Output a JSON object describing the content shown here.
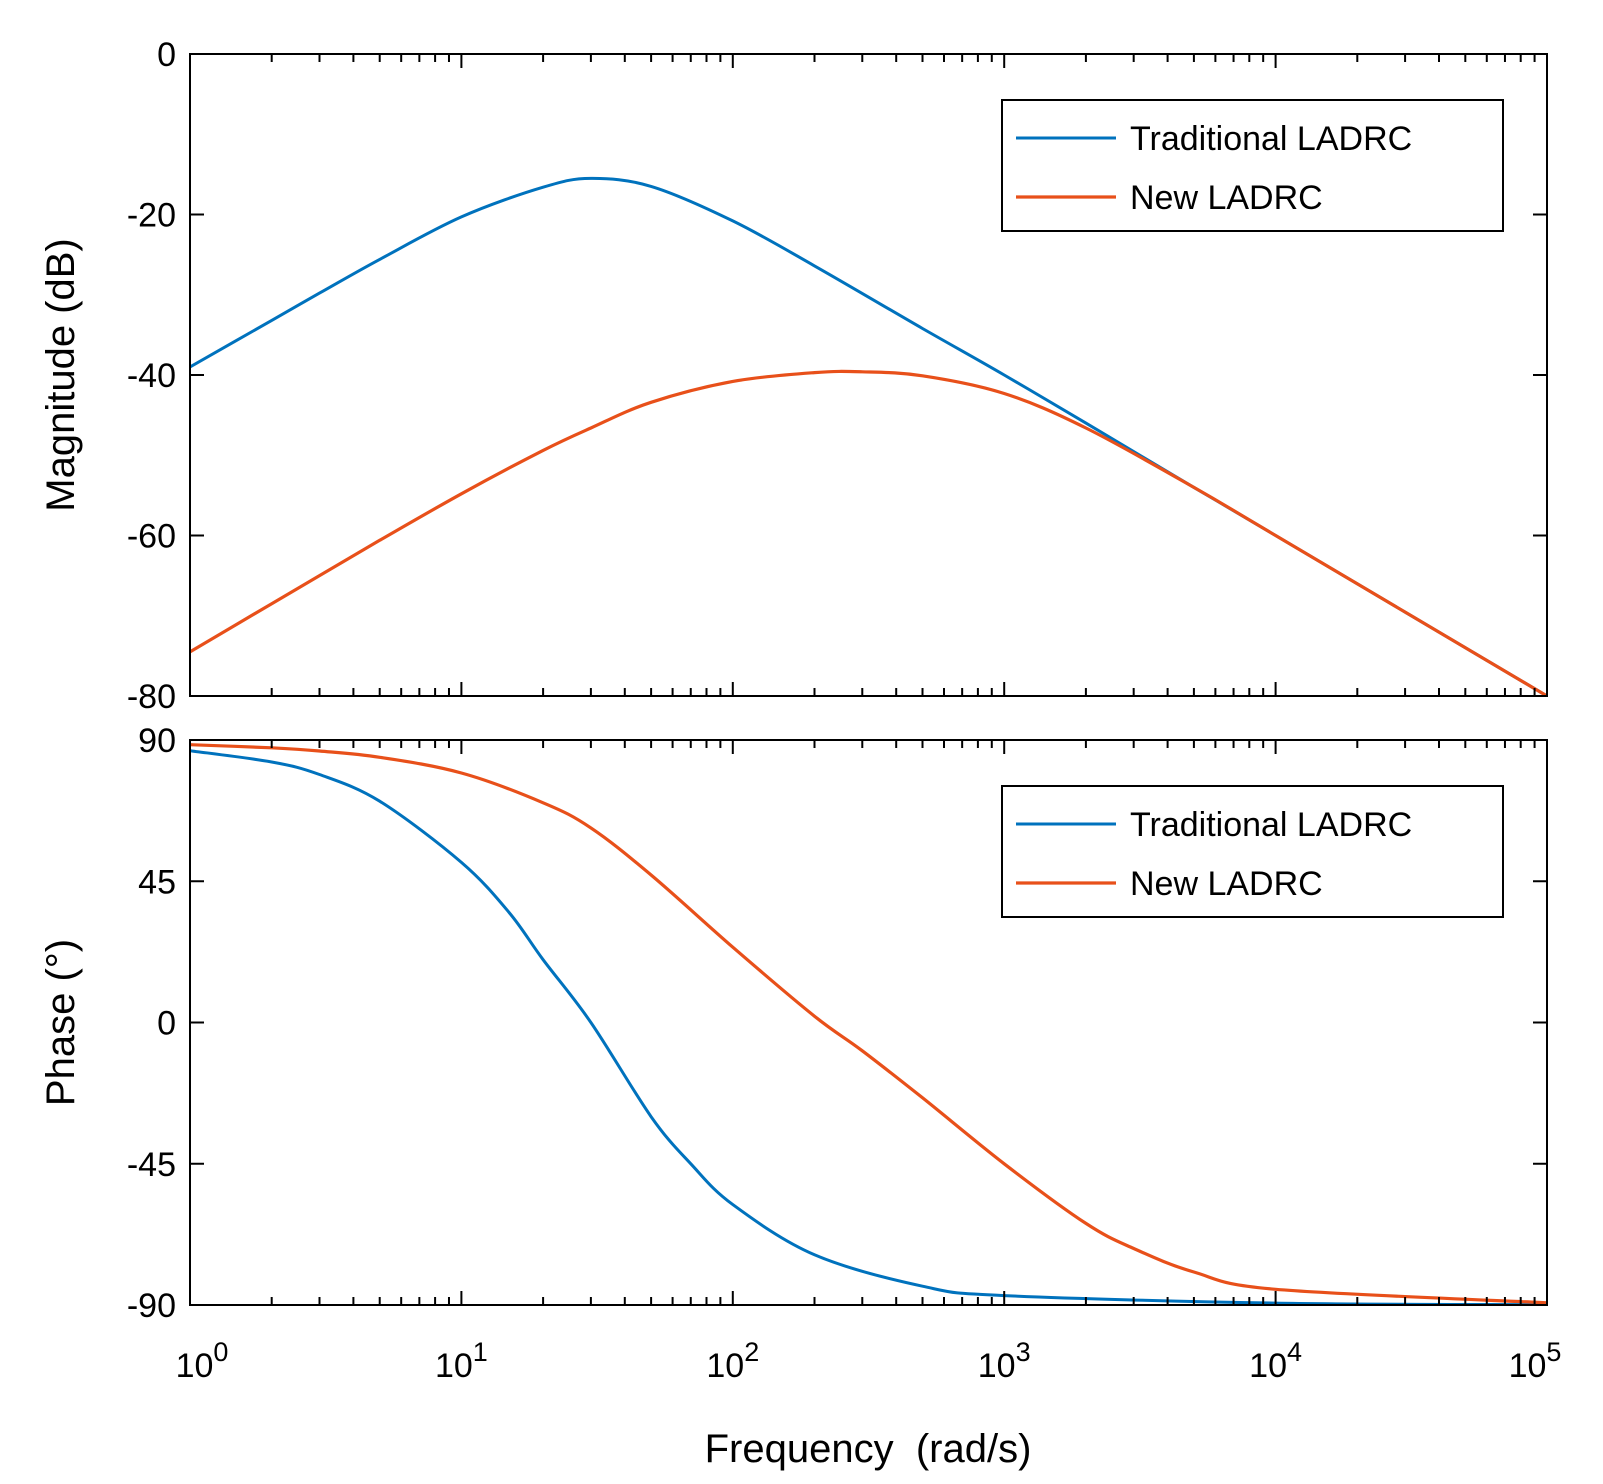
{
  "chart_data": [
    {
      "type": "line",
      "panel": "magnitude",
      "ylabel": "Magnitude (dB)",
      "xscale": "log",
      "xlim": [
        1,
        100000
      ],
      "ylim": [
        -80,
        0
      ],
      "yticks": [
        0,
        -20,
        -40,
        -60,
        -80
      ],
      "ytick_labels": [
        "0",
        "-20",
        "-40",
        "-60",
        "-80"
      ],
      "legend_position": "top-right",
      "series": [
        {
          "name": "Traditional LADRC",
          "color": "#0072BD",
          "x": [
            1,
            2,
            3,
            5,
            10,
            20,
            30,
            50,
            100,
            200,
            500,
            1000,
            2000,
            5000,
            10000,
            100000
          ],
          "y": [
            -39,
            -33.2,
            -29.8,
            -25.6,
            -20.3,
            -16.6,
            -15.5,
            -16.5,
            -20.8,
            -26.4,
            -34.2,
            -40.0,
            -46.0,
            -54.0,
            -60.0,
            -80.0
          ]
        },
        {
          "name": "New LADRC",
          "color": "#E8501A",
          "x": [
            1,
            2,
            3,
            5,
            10,
            20,
            30,
            50,
            100,
            200,
            300,
            500,
            1000,
            2000,
            5000,
            10000,
            100000
          ],
          "y": [
            -74.5,
            -68.5,
            -65.0,
            -60.6,
            -54.8,
            -49.4,
            -46.6,
            -43.4,
            -40.8,
            -39.7,
            -39.6,
            -40.1,
            -42.3,
            -46.6,
            -54.0,
            -60.0,
            -80.0
          ]
        }
      ]
    },
    {
      "type": "line",
      "panel": "phase",
      "ylabel": "Phase (°)",
      "xlabel": "Frequency  (rad/s)",
      "xscale": "log",
      "xlim": [
        1,
        100000
      ],
      "ylim": [
        -90,
        90
      ],
      "yticks": [
        90,
        45,
        0,
        -45,
        -90
      ],
      "ytick_labels": [
        "90",
        "45",
        "0",
        "-45",
        "-90"
      ],
      "xtick_bases": [
        "10",
        "10",
        "10",
        "10",
        "10",
        "10"
      ],
      "xtick_exponents": [
        "0",
        "1",
        "2",
        "3",
        "4",
        "5"
      ],
      "legend_position": "top-right",
      "series": [
        {
          "name": "Traditional LADRC",
          "color": "#0072BD",
          "x": [
            1,
            2,
            3,
            5,
            10,
            15,
            20,
            30,
            50,
            70,
            100,
            200,
            500,
            1000,
            10000,
            100000
          ],
          "y": [
            86.6,
            83.0,
            79.0,
            70.5,
            51.0,
            35.0,
            20.0,
            0.0,
            -30.0,
            -45.0,
            -58.0,
            -74.0,
            -84.0,
            -87.0,
            -89.4,
            -89.9
          ]
        },
        {
          "name": "New LADRC",
          "color": "#E8501A",
          "x": [
            1,
            2,
            3,
            5,
            10,
            20,
            30,
            50,
            100,
            200,
            300,
            500,
            1000,
            2000,
            3000,
            5000,
            10000,
            100000
          ],
          "y": [
            88.5,
            87.5,
            86.5,
            84.5,
            79.5,
            70.0,
            62.0,
            47.0,
            24.0,
            2.0,
            -9.0,
            -24.0,
            -45.0,
            -64.0,
            -72.0,
            -79.5,
            -85.0,
            -89.3
          ]
        }
      ]
    }
  ]
}
